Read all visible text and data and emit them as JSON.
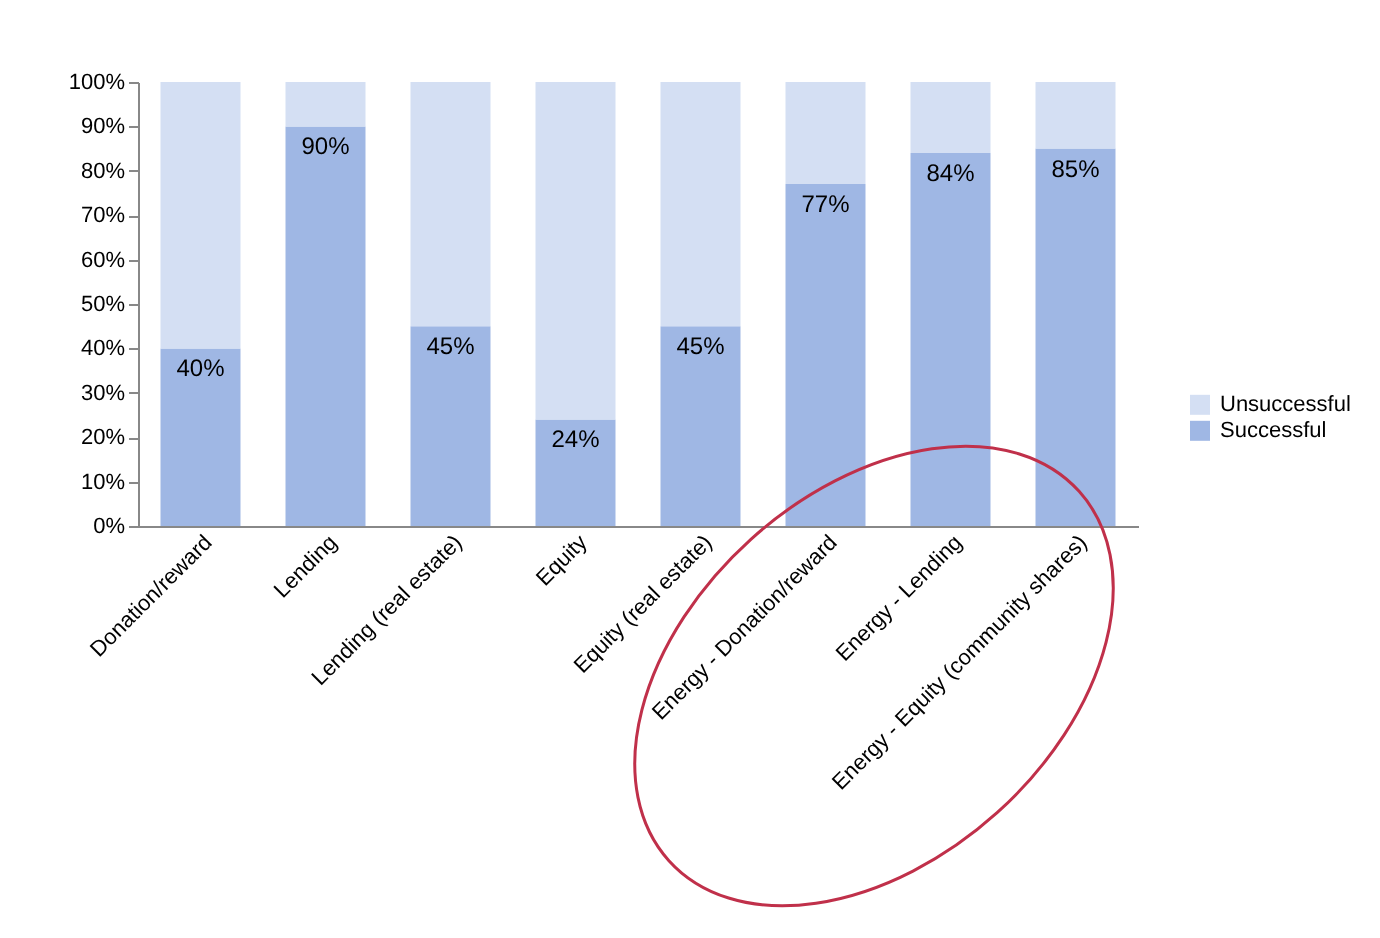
{
  "chart_data": {
    "type": "bar",
    "stacked": true,
    "categories": [
      "Donation/reward",
      "Lending",
      "Lending (real estate)",
      "Equity",
      "Equity (real estate)",
      "Energy - Donation/reward",
      "Energy - Lending",
      "Energy - Equity (community shares)"
    ],
    "series": [
      {
        "name": "Successful",
        "color": "#9fb7e4",
        "values": [
          40,
          90,
          45,
          24,
          45,
          77,
          84,
          85
        ],
        "value_labels": [
          "40%",
          "90%",
          "45%",
          "24%",
          "45%",
          "77%",
          "84%",
          "85%"
        ]
      },
      {
        "name": "Unsuccessful",
        "color": "#d4dff3",
        "values": [
          60,
          10,
          55,
          76,
          55,
          23,
          16,
          15
        ]
      }
    ],
    "ylim": [
      0,
      100
    ],
    "yticks": [
      {
        "value": 0,
        "label": "0%"
      },
      {
        "value": 10,
        "label": "10%"
      },
      {
        "value": 20,
        "label": "20%"
      },
      {
        "value": 30,
        "label": "30%"
      },
      {
        "value": 40,
        "label": "40%"
      },
      {
        "value": 50,
        "label": "50%"
      },
      {
        "value": 60,
        "label": "60%"
      },
      {
        "value": 70,
        "label": "70%"
      },
      {
        "value": 80,
        "label": "80%"
      },
      {
        "value": 90,
        "label": "90%"
      },
      {
        "value": 100,
        "label": "100%"
      }
    ],
    "legend": "right"
  }
}
